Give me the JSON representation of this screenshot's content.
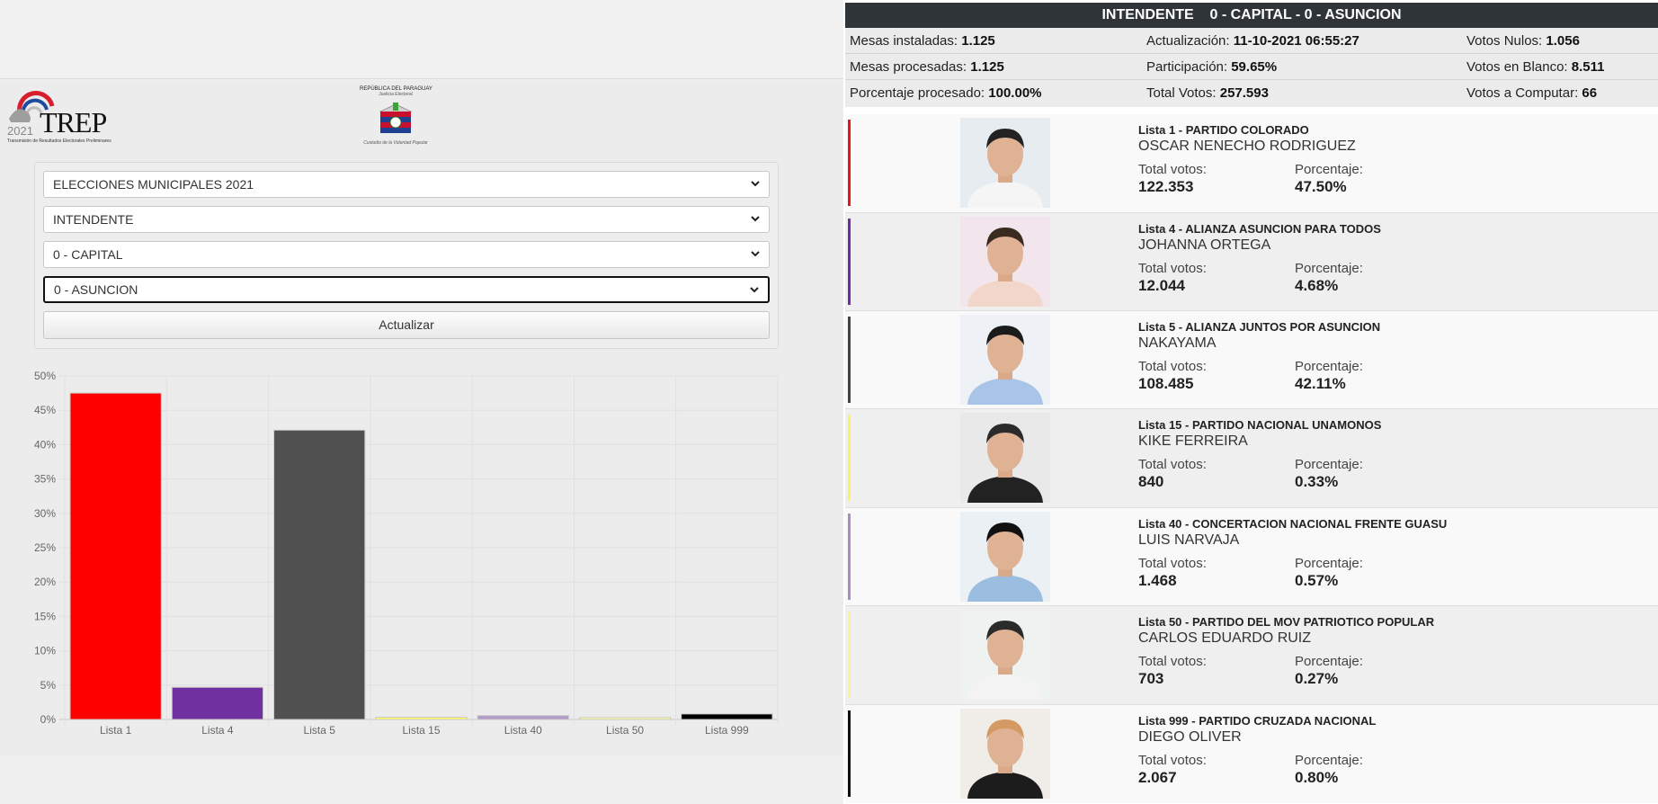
{
  "left": {
    "logo": {
      "word": "TREP",
      "year": "2021",
      "sub": "Transmisión de Resultados Electorales Preliminares"
    },
    "tsje": {
      "line1": "REPÚBLICA DEL PARAGUAY",
      "line2": "Justicia Electoral",
      "line3": "Custodio de la Voluntad Popular"
    },
    "filters": {
      "eleccion": "ELECCIONES MUNICIPALES 2021",
      "cargo": "INTENDENTE",
      "departamento": "0 - CAPITAL",
      "distrito": "0 - ASUNCION",
      "actualizar_label": "Actualizar"
    }
  },
  "chart_data": {
    "type": "bar",
    "categories": [
      "Lista 1",
      "Lista 4",
      "Lista 5",
      "Lista 15",
      "Lista 40",
      "Lista 50",
      "Lista 999"
    ],
    "values": [
      47.5,
      4.68,
      42.11,
      0.33,
      0.57,
      0.27,
      0.8
    ],
    "colors": [
      "#ff0000",
      "#7030a0",
      "#505050",
      "#ffff66",
      "#b39bc8",
      "#ffff99",
      "#000000"
    ],
    "yticks": [
      "0%",
      "5%",
      "10%",
      "15%",
      "20%",
      "25%",
      "30%",
      "35%",
      "40%",
      "45%",
      "50%"
    ],
    "ylim": [
      0,
      50
    ],
    "grid": true,
    "legend": "none"
  },
  "right": {
    "header": {
      "cargo": "INTENDENTE",
      "location": "0 - CAPITAL - 0 - ASUNCION"
    },
    "stats": {
      "mesas_instaladas_label": "Mesas instaladas:",
      "mesas_instaladas": "1.125",
      "actualizacion_label": "Actualización:",
      "actualizacion": "11-10-2021 06:55:27",
      "votos_nulos_label": "Votos Nulos:",
      "votos_nulos": "1.056",
      "mesas_procesadas_label": "Mesas procesadas:",
      "mesas_procesadas": "1.125",
      "participacion_label": "Participación:",
      "participacion": "59.65%",
      "votos_blanco_label": "Votos en Blanco:",
      "votos_blanco": "8.511",
      "porcentaje_procesado_label": "Porcentaje procesado:",
      "porcentaje_procesado": "100.00%",
      "total_votos_label": "Total Votos:",
      "total_votos": "257.593",
      "votos_computar_label": "Votos a Computar:",
      "votos_computar": "66"
    },
    "labels": {
      "total_votos": "Total votos:",
      "porcentaje": "Porcentaje:"
    },
    "candidates": [
      {
        "lista": "Lista 1 - PARTIDO COLORADO",
        "name": "OSCAR NENECHO RODRIGUEZ",
        "votes": "122.353",
        "pct": "47.50%",
        "color": "#e8141b"
      },
      {
        "lista": "Lista 4 - ALIANZA ASUNCION PARA TODOS",
        "name": "JOHANNA ORTEGA",
        "votes": "12.044",
        "pct": "4.68%",
        "color": "#6b2fa3"
      },
      {
        "lista": "Lista 5 - ALIANZA JUNTOS POR ASUNCION",
        "name": "NAKAYAMA",
        "votes": "108.485",
        "pct": "42.11%",
        "color": "#444444"
      },
      {
        "lista": "Lista 15 - PARTIDO NACIONAL UNAMONOS",
        "name": "KIKE FERREIRA",
        "votes": "840",
        "pct": "0.33%",
        "color": "#f7f36a"
      },
      {
        "lista": "Lista 40 - CONCERTACION NACIONAL FRENTE GUASU",
        "name": "LUIS NARVAJA",
        "votes": "1.468",
        "pct": "0.57%",
        "color": "#a98fc0"
      },
      {
        "lista": "Lista 50 - PARTIDO DEL MOV PATRIOTICO POPULAR",
        "name": "CARLOS EDUARDO RUIZ",
        "votes": "703",
        "pct": "0.27%",
        "color": "#f7f39a"
      },
      {
        "lista": "Lista 999 - PARTIDO CRUZADA NACIONAL",
        "name": "DIEGO OLIVER",
        "votes": "2.067",
        "pct": "0.80%",
        "color": "#111111"
      }
    ]
  }
}
